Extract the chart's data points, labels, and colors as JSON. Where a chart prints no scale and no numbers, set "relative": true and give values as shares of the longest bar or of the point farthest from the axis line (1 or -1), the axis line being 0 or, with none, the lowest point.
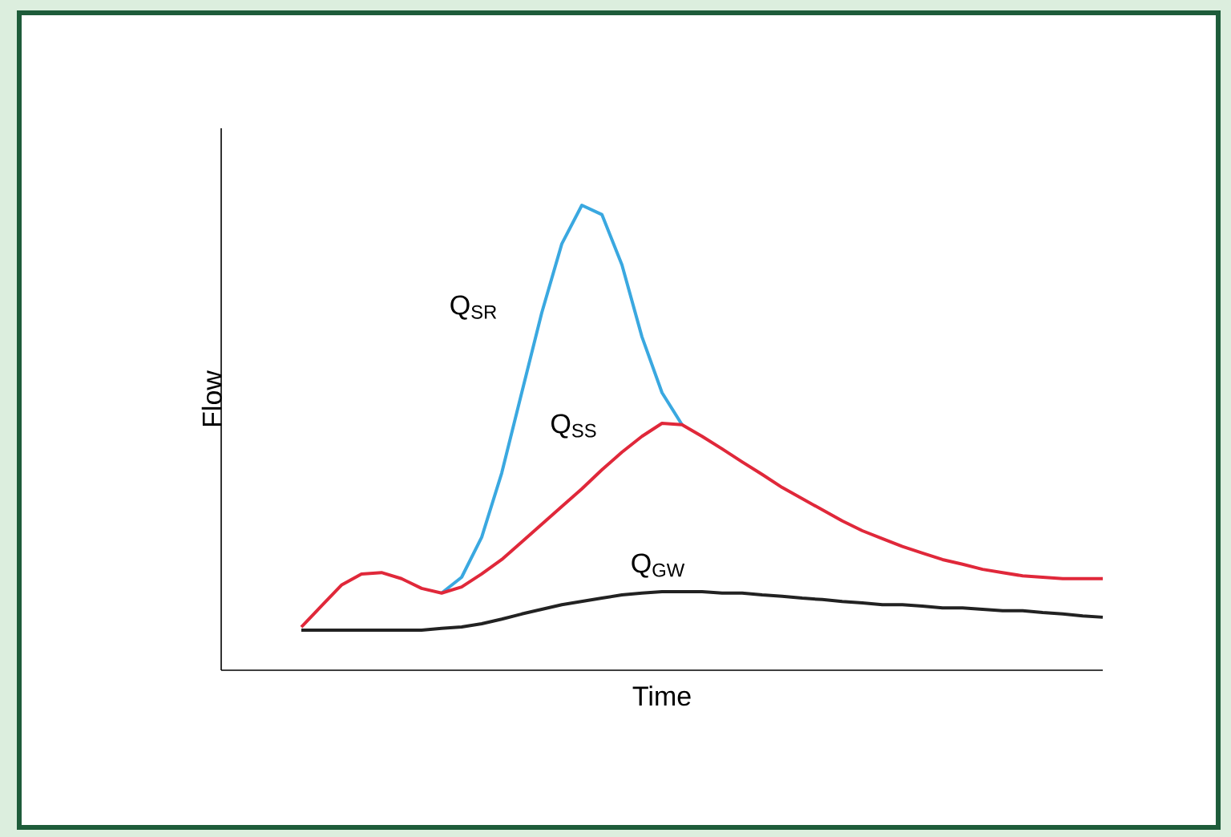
{
  "chart_data": {
    "type": "line",
    "relative": true,
    "xlabel": "Time",
    "ylabel": "Flow",
    "categories": [
      null,
      null,
      null,
      null,
      null,
      null,
      null,
      null,
      null,
      null,
      null,
      null,
      null,
      null,
      null,
      null,
      null,
      null,
      null,
      null,
      null,
      null,
      null,
      null,
      null,
      null,
      null,
      null,
      null,
      null,
      null,
      null,
      null,
      null,
      null,
      null,
      null,
      null,
      null,
      null,
      null,
      null,
      null,
      null,
      null
    ],
    "series": [
      {
        "name": "Q$_{SR}$",
        "color": "#3aa8e0",
        "values": [
          null,
          null,
          null,
          null,
          null,
          null,
          null,
          null,
          null,
          null,
          null,
          0.166,
          0.2,
          0.286,
          0.424,
          0.597,
          0.769,
          0.917,
          1.0,
          0.98,
          0.872,
          0.717,
          0.597,
          0.528,
          null,
          null,
          null,
          null,
          null,
          null,
          null,
          null,
          null,
          null,
          null,
          null,
          null,
          null,
          null,
          null,
          null,
          null,
          null,
          null,
          null
        ]
      },
      {
        "name": "Q$_{SS}$",
        "color": "#e0283a",
        "values": [
          null,
          null,
          null,
          null,
          0.093,
          0.138,
          0.183,
          0.207,
          0.21,
          0.197,
          0.176,
          0.166,
          0.179,
          0.207,
          0.238,
          0.276,
          0.314,
          0.352,
          0.39,
          0.431,
          0.469,
          0.503,
          0.531,
          0.528,
          0.503,
          0.476,
          0.448,
          0.421,
          0.393,
          0.369,
          0.345,
          0.321,
          0.3,
          0.283,
          0.266,
          0.252,
          0.238,
          0.228,
          0.217,
          0.21,
          0.203,
          0.2,
          0.197,
          0.197,
          0.197
        ]
      },
      {
        "name": "Q$_{GW}$",
        "color": "#222222",
        "values": [
          null,
          null,
          null,
          null,
          0.086,
          0.086,
          0.086,
          0.086,
          0.086,
          0.086,
          0.086,
          0.09,
          0.093,
          0.1,
          0.11,
          0.121,
          0.131,
          0.141,
          0.148,
          0.155,
          0.162,
          0.166,
          0.169,
          0.169,
          0.169,
          0.166,
          0.166,
          0.162,
          0.159,
          0.155,
          0.152,
          0.148,
          0.145,
          0.141,
          0.141,
          0.138,
          0.134,
          0.134,
          0.131,
          0.128,
          0.128,
          0.124,
          0.121,
          0.117,
          0.114
        ]
      }
    ]
  }
}
